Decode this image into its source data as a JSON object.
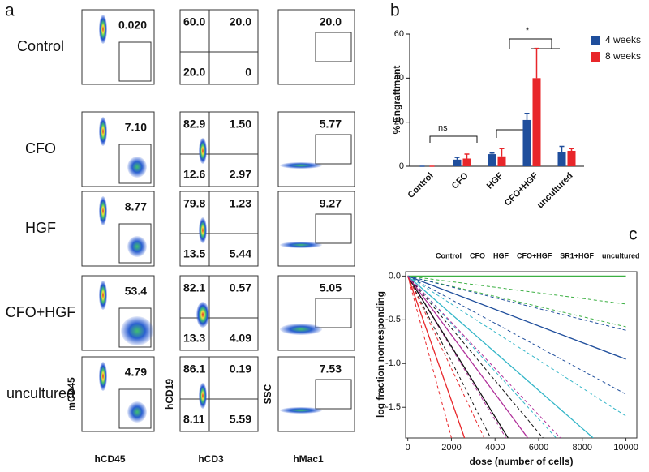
{
  "panel_labels": [
    "a",
    "b",
    "c"
  ],
  "flow": {
    "row_labels": [
      "Control",
      "CFO",
      "HGF",
      "CFO+HGF",
      "uncultured"
    ],
    "columns": [
      {
        "x_label": "hCD45",
        "y_label": "mCD45",
        "values": [
          "0.020",
          "7.10",
          "8.77",
          "53.4",
          "4.79"
        ]
      },
      {
        "x_label": "hCD3",
        "y_label": "hCD19",
        "quadrants": [
          [
            "60.0",
            "20.0",
            "20.0",
            "0"
          ],
          [
            "82.9",
            "1.50",
            "12.6",
            "2.97"
          ],
          [
            "79.8",
            "1.23",
            "13.5",
            "5.44"
          ],
          [
            "82.1",
            "0.57",
            "13.3",
            "4.09"
          ],
          [
            "86.1",
            "0.19",
            "8.11",
            "5.59"
          ]
        ]
      },
      {
        "x_label": "hMac1",
        "y_label": "SSC",
        "values": [
          "20.0",
          "5.77",
          "9.27",
          "5.05",
          "7.53"
        ]
      }
    ]
  },
  "chart_data": [
    {
      "type": "bar",
      "y_label": "% Engraftment",
      "categories": [
        "Control",
        "CFO",
        "HGF",
        "CFO+HGF",
        "uncultured"
      ],
      "series": [
        {
          "name": "4 weeks",
          "color": "#1f4e9c",
          "values": [
            0,
            3,
            5.5,
            21,
            6.5
          ],
          "errors": [
            0,
            1,
            0.5,
            3,
            2.5
          ]
        },
        {
          "name": "8 weeks",
          "color": "#e8262a",
          "values": [
            0,
            3.5,
            4.5,
            40,
            7
          ],
          "errors": [
            0,
            2,
            3.5,
            13.5,
            1
          ]
        }
      ],
      "ylim": [
        0,
        60
      ],
      "yticks": [
        0,
        20,
        40,
        60
      ],
      "annotations": [
        "ns",
        "*"
      ]
    },
    {
      "type": "line",
      "x_label": "dose (number of cells)",
      "y_label": "log fraction nonresponding",
      "xlim": [
        -100,
        10500
      ],
      "xticks": [
        0,
        2000,
        4000,
        6000,
        8000,
        10000
      ],
      "ylim": [
        -1.85,
        0.05
      ],
      "yticks": [
        {
          "value": 0,
          "label": "0.0"
        },
        -0.5,
        {
          "value": -1,
          "label": "-1.0"
        },
        -1.5
      ],
      "series": [
        {
          "name": "Control",
          "color": "#3cb043",
          "x": [
            0,
            10000
          ],
          "values": [
            0,
            0
          ]
        },
        {
          "name": "CFO",
          "color": "#111111",
          "x": [
            0,
            4600
          ],
          "values": [
            0,
            -1.85
          ]
        },
        {
          "name": "HGF",
          "color": "#1f4e9c",
          "x": [
            0,
            10000
          ],
          "values": [
            0,
            -0.95
          ]
        },
        {
          "name": "CFO+HGF",
          "color": "#e8262a",
          "x": [
            0,
            2600
          ],
          "values": [
            0,
            -1.85
          ]
        },
        {
          "name": "SR1+HGF",
          "color": "#34b6c8",
          "x": [
            0,
            8500
          ],
          "values": [
            0,
            -1.85
          ]
        },
        {
          "name": "uncultured",
          "color": "#b0309a",
          "x": [
            0,
            5500
          ],
          "values": [
            0,
            -1.85
          ]
        }
      ],
      "ci_lines": [
        {
          "color": "#3cb043",
          "x": [
            0,
            10000
          ],
          "values": [
            0,
            -0.32
          ]
        },
        {
          "color": "#3cb043",
          "x": [
            0,
            10000
          ],
          "values": [
            0,
            -0.58
          ]
        },
        {
          "color": "#1f4e9c",
          "x": [
            0,
            10000
          ],
          "values": [
            0,
            -0.62
          ]
        },
        {
          "color": "#1f4e9c",
          "x": [
            0,
            10000
          ],
          "values": [
            0,
            -1.35
          ]
        },
        {
          "color": "#34b6c8",
          "x": [
            0,
            10000
          ],
          "values": [
            0,
            -1.6
          ]
        },
        {
          "color": "#34b6c8",
          "x": [
            0,
            6800
          ],
          "values": [
            0,
            -1.85
          ]
        },
        {
          "color": "#b0309a",
          "x": [
            0,
            7000
          ],
          "values": [
            0,
            -1.85
          ]
        },
        {
          "color": "#b0309a",
          "x": [
            0,
            4500
          ],
          "values": [
            0,
            -1.85
          ]
        },
        {
          "color": "#111111",
          "x": [
            0,
            6200
          ],
          "values": [
            0,
            -1.85
          ]
        },
        {
          "color": "#111111",
          "x": [
            0,
            3800
          ],
          "values": [
            0,
            -1.85
          ]
        },
        {
          "color": "#e8262a",
          "x": [
            0,
            3500
          ],
          "values": [
            0,
            -1.85
          ]
        },
        {
          "color": "#e8262a",
          "x": [
            0,
            2000
          ],
          "values": [
            0,
            -1.85
          ]
        }
      ]
    }
  ]
}
